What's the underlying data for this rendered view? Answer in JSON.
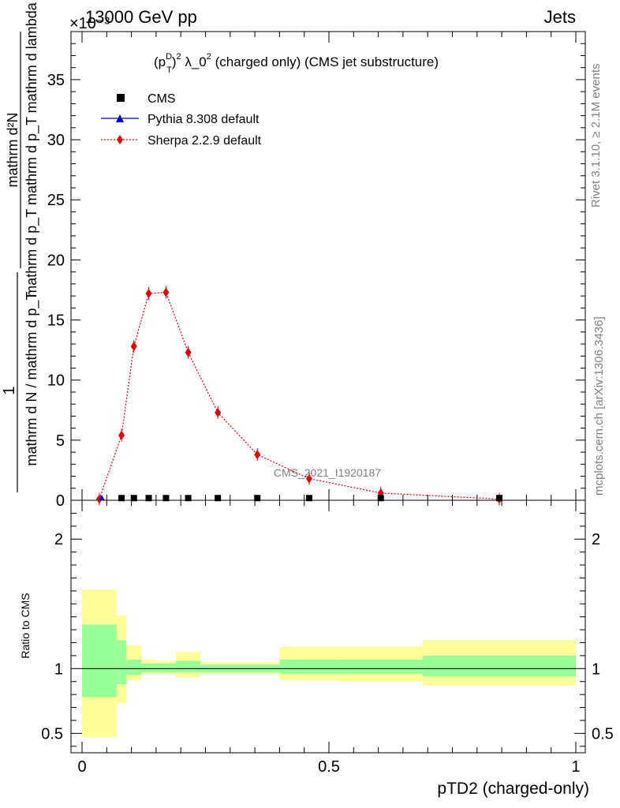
{
  "header": {
    "left": "13000 GeV pp",
    "right": "Jets",
    "exponent_label": "×10⁻³"
  },
  "side_labels": {
    "rivet": "Rivet 3.1.10, ≥ 2.1M events",
    "mcplots": "mcplots.cern.ch [arXiv:1306.3436]"
  },
  "watermark": "CMS_2021_I1920187",
  "chart_data": [
    {
      "type": "line",
      "title": "(p_T^D)^2 λ_0^2 (charged only) (CMS jet substructure)",
      "title_parts": {
        "p": "(p",
        "sub": "T",
        "sup": "D",
        "close": ")",
        "sq": "2",
        "lam": " λ_0",
        "sq2": "2",
        "rest": " (charged only) (CMS jet substructure)"
      },
      "ylabel": {
        "numerator": "mathrm d²N",
        "denominator": "mathrm d p_T mathrm d p_T mathrm d lambda",
        "prefix_num": "1",
        "prefix_den": "mathrm d N / mathrm d p_T"
      },
      "xlim": [
        0,
        1
      ],
      "ylim": [
        0,
        39
      ],
      "y_scale_factor": "1e-3",
      "yticks": [
        0,
        5,
        10,
        15,
        20,
        25,
        30,
        35
      ],
      "yticklabels": [
        "0",
        "5",
        "10",
        "15",
        "20",
        "25",
        "30",
        "35"
      ],
      "legend_position": "top-left",
      "legend": [
        {
          "name": "CMS",
          "color": "#000000",
          "marker": "square"
        },
        {
          "name": "Pythia 8.308 default",
          "color": "#0000cc",
          "marker": "triangle"
        },
        {
          "name": "Sherpa 2.2.9 default",
          "color": "#e00000",
          "marker": "diamond"
        }
      ],
      "series": [
        {
          "name": "CMS",
          "x": [
            0.04,
            0.08,
            0.105,
            0.135,
            0.17,
            0.215,
            0.275,
            0.355,
            0.46,
            0.605,
            0.845
          ],
          "y": [
            0.05,
            0.05,
            0.05,
            0.05,
            0.05,
            0.05,
            0.05,
            0.05,
            0.05,
            0.05,
            0.05
          ]
        },
        {
          "name": "Pythia 8.308 default",
          "x": [
            0.04,
            0.08,
            0.105,
            0.135,
            0.17,
            0.215,
            0.275,
            0.355,
            0.46,
            0.605,
            0.845
          ],
          "y": [
            0.05,
            0.05,
            0.05,
            0.05,
            0.05,
            0.05,
            0.05,
            0.05,
            0.05,
            0.05,
            0.05
          ]
        },
        {
          "name": "Sherpa 2.2.9 default",
          "x": [
            0.035,
            0.08,
            0.105,
            0.135,
            0.17,
            0.215,
            0.275,
            0.355,
            0.46,
            0.605,
            0.845
          ],
          "y": [
            0.1,
            5.4,
            12.8,
            17.2,
            17.3,
            12.3,
            7.3,
            3.8,
            1.8,
            0.6,
            0.1
          ]
        }
      ]
    },
    {
      "type": "area",
      "ylabel": "Ratio to CMS",
      "xlabel": "pTD2 (charged-only)",
      "xlim": [
        0,
        1
      ],
      "ylim": [
        0.35,
        2.3
      ],
      "xticks": [
        0,
        0.5,
        1
      ],
      "xticklabels": [
        "0",
        "0.5",
        "1"
      ],
      "yticks": [
        0.5,
        1,
        2
      ],
      "yticklabels": [
        "0.5",
        "1",
        "2"
      ],
      "colors": {
        "inner_band": "#99ff99",
        "outer_band": "#ffff99"
      },
      "bins": [
        {
          "lo": 0.0,
          "hi": 0.07,
          "inner": [
            0.78,
            1.34
          ],
          "outer": [
            0.47,
            1.61
          ]
        },
        {
          "lo": 0.07,
          "hi": 0.09,
          "inner": [
            0.88,
            1.22
          ],
          "outer": [
            0.73,
            1.41
          ]
        },
        {
          "lo": 0.09,
          "hi": 0.12,
          "inner": [
            0.95,
            1.07
          ],
          "outer": [
            0.91,
            1.18
          ]
        },
        {
          "lo": 0.12,
          "hi": 0.15,
          "inner": [
            0.97,
            1.04
          ],
          "outer": [
            0.96,
            1.07
          ]
        },
        {
          "lo": 0.15,
          "hi": 0.19,
          "inner": [
            0.97,
            1.04
          ],
          "outer": [
            0.96,
            1.06
          ]
        },
        {
          "lo": 0.19,
          "hi": 0.24,
          "inner": [
            0.97,
            1.06
          ],
          "outer": [
            0.93,
            1.13
          ]
        },
        {
          "lo": 0.24,
          "hi": 0.31,
          "inner": [
            0.97,
            1.03
          ],
          "outer": [
            0.96,
            1.05
          ]
        },
        {
          "lo": 0.31,
          "hi": 0.4,
          "inner": [
            0.97,
            1.03
          ],
          "outer": [
            0.96,
            1.05
          ]
        },
        {
          "lo": 0.4,
          "hi": 0.52,
          "inner": [
            0.96,
            1.07
          ],
          "outer": [
            0.91,
            1.17
          ]
        },
        {
          "lo": 0.52,
          "hi": 0.69,
          "inner": [
            0.96,
            1.07
          ],
          "outer": [
            0.9,
            1.17
          ]
        },
        {
          "lo": 0.69,
          "hi": 1.0,
          "inner": [
            0.94,
            1.1
          ],
          "outer": [
            0.87,
            1.22
          ]
        }
      ]
    }
  ]
}
